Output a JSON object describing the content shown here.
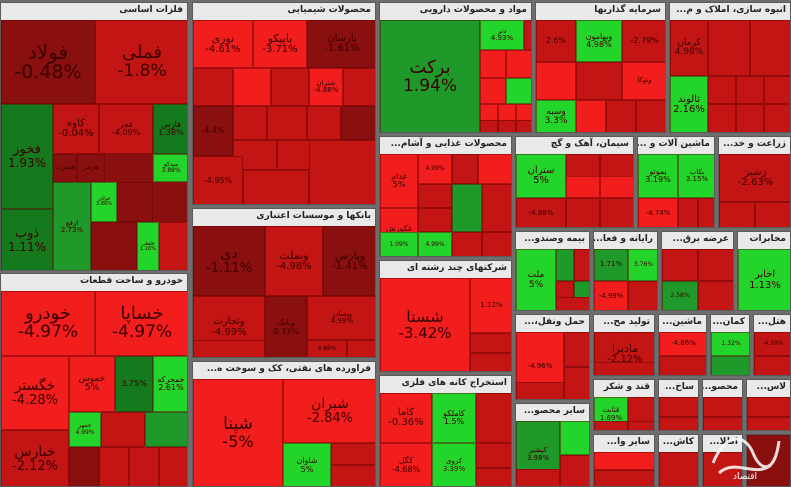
{
  "chart_data": {
    "type": "treemap",
    "title": "",
    "sectors": [
      {
        "id": "s1",
        "name": "فلزات اساسی",
        "tiles": [
          {
            "name": "فولاد",
            "value": "-0.48%"
          },
          {
            "name": "فملی",
            "value": "-1.8%"
          },
          {
            "name": "فخوز",
            "value": "1.93%"
          },
          {
            "name": "کاوه",
            "value": "-0.04%"
          },
          {
            "name": "فجر",
            "value": "-4.09%"
          },
          {
            "name": "فارس",
            "value": "1.38%"
          },
          {
            "name": "فسرب",
            "value": ""
          },
          {
            "name": "هرمز",
            "value": ""
          },
          {
            "name": "میدکو",
            "value": "3.88%"
          },
          {
            "name": "ذوب",
            "value": "1.11%"
          },
          {
            "name": "ارفع",
            "value": "2.73%"
          },
          {
            "name": "فولای",
            "value": "3.86%"
          },
          {
            "name": "",
            "value": ""
          },
          {
            "name": "فلطی",
            "value": "1.16%"
          },
          {
            "name": "",
            "value": ""
          },
          {
            "name": "",
            "value": ""
          }
        ]
      },
      {
        "id": "s2",
        "name": "محصولات شیمیایی",
        "tiles": [
          {
            "name": "نوری",
            "value": "-4.61%"
          },
          {
            "name": "پاپیکو",
            "value": "-3.71%"
          },
          {
            "name": "پارسان",
            "value": "-1.61%"
          },
          {
            "name": "",
            "value": ""
          },
          {
            "name": "",
            "value": ""
          },
          {
            "name": "",
            "value": ""
          },
          {
            "name": "شتران",
            "value": "-4.88%"
          },
          {
            "name": "",
            "value": ""
          },
          {
            "name": "",
            "value": ""
          },
          {
            "name": "",
            "value": ""
          },
          {
            "name": "",
            "value": ""
          },
          {
            "name": "",
            "value": ""
          },
          {
            "name": "",
            "value": "-4.4%"
          },
          {
            "name": "",
            "value": ""
          },
          {
            "name": "",
            "value": ""
          },
          {
            "name": "",
            "value": "-4.95%"
          },
          {
            "name": "",
            "value": ""
          },
          {
            "name": "",
            "value": ""
          }
        ]
      },
      {
        "id": "s3",
        "name": "مواد و محصولات دارویی",
        "tiles": [
          {
            "name": "برکت",
            "value": "1.94%"
          },
          {
            "name": "دتر",
            "value": "4.93%"
          },
          {
            "name": "",
            "value": ""
          },
          {
            "name": "",
            "value": ""
          },
          {
            "name": "",
            "value": ""
          },
          {
            "name": "",
            "value": ""
          },
          {
            "name": "",
            "value": ""
          },
          {
            "name": "",
            "value": ""
          },
          {
            "name": "",
            "value": ""
          },
          {
            "name": "",
            "value": ""
          },
          {
            "name": "",
            "value": ""
          },
          {
            "name": "",
            "value": ""
          },
          {
            "name": "",
            "value": ""
          }
        ]
      },
      {
        "id": "s4",
        "name": "سرمایه گذاریها",
        "tiles": [
          {
            "name": "",
            "value": "2.6%"
          },
          {
            "name": "وبهامون",
            "value": "4.98%"
          },
          {
            "name": "",
            "value": "-2.79%"
          },
          {
            "name": "",
            "value": ""
          },
          {
            "name": "",
            "value": ""
          },
          {
            "name": "وتوکا",
            "value": ""
          },
          {
            "name": "",
            "value": ""
          },
          {
            "name": "وسبه",
            "value": "3.3%"
          },
          {
            "name": "",
            "value": ""
          },
          {
            "name": "",
            "value": ""
          },
          {
            "name": "",
            "value": ""
          }
        ]
      },
      {
        "id": "s5",
        "name": "انبوه سازی، املاک و م...",
        "tiles": [
          {
            "name": "کرمان",
            "value": "4.98%"
          },
          {
            "name": "",
            "value": ""
          },
          {
            "name": "",
            "value": ""
          },
          {
            "name": "ثالوند",
            "value": "2.16%"
          },
          {
            "name": "",
            "value": ""
          },
          {
            "name": "",
            "value": ""
          },
          {
            "name": "",
            "value": ""
          },
          {
            "name": "",
            "value": ""
          },
          {
            "name": "",
            "value": ""
          },
          {
            "name": "",
            "value": ""
          }
        ]
      },
      {
        "id": "s6",
        "name": "خودرو و ساخت قطعات",
        "tiles": [
          {
            "name": "خودرو",
            "value": "-4.97%"
          },
          {
            "name": "خساپا",
            "value": "-4.97%"
          },
          {
            "name": "خگستر",
            "value": "-4.28%"
          },
          {
            "name": "خموس",
            "value": "5%"
          },
          {
            "name": "",
            "value": "3.75%"
          },
          {
            "name": "خمحرکه",
            "value": "2.61%"
          },
          {
            "name": "خمهر",
            "value": "4.99%"
          },
          {
            "name": "",
            "value": ""
          },
          {
            "name": "",
            "value": ""
          },
          {
            "name": "خبارس",
            "value": "-2.12%"
          },
          {
            "name": "",
            "value": ""
          },
          {
            "name": "",
            "value": ""
          },
          {
            "name": "",
            "value": ""
          },
          {
            "name": "",
            "value": ""
          },
          {
            "name": "",
            "value": ""
          }
        ]
      },
      {
        "id": "s7",
        "name": "محصولات غذایی و آشام...",
        "tiles": [
          {
            "name": "غدام",
            "value": "5%"
          },
          {
            "name": "",
            "value": "4.99%"
          },
          {
            "name": "",
            "value": ""
          },
          {
            "name": "",
            "value": ""
          },
          {
            "name": "",
            "value": ""
          },
          {
            "name": "غکورش",
            "value": "4.98%"
          },
          {
            "name": "",
            "value": ""
          },
          {
            "name": "",
            "value": ""
          },
          {
            "name": "",
            "value": "1.09%"
          },
          {
            "name": "",
            "value": "4.99%"
          },
          {
            "name": "",
            "value": ""
          },
          {
            "name": "",
            "value": ""
          },
          {
            "name": "",
            "value": ""
          }
        ]
      },
      {
        "id": "s8",
        "name": "سیمان، آهک و گچ",
        "tiles": [
          {
            "name": "ستران",
            "value": "5%"
          },
          {
            "name": "",
            "value": ""
          },
          {
            "name": "",
            "value": ""
          },
          {
            "name": "",
            "value": "-4.98%"
          },
          {
            "name": "",
            "value": ""
          },
          {
            "name": "",
            "value": ""
          },
          {
            "name": "",
            "value": ""
          },
          {
            "name": "",
            "value": ""
          }
        ]
      },
      {
        "id": "s9",
        "name": "ماشین آلات و ...",
        "tiles": [
          {
            "name": "بموتو",
            "value": "3.19%"
          },
          {
            "name": "بکاب",
            "value": "3.15%"
          },
          {
            "name": "",
            "value": "-4.74%"
          },
          {
            "name": "",
            "value": ""
          },
          {
            "name": "",
            "value": ""
          }
        ]
      },
      {
        "id": "s10",
        "name": "زراعت و خد...",
        "tiles": [
          {
            "name": "زشیر",
            "value": "-2.63%"
          },
          {
            "name": "",
            "value": ""
          },
          {
            "name": "",
            "value": ""
          }
        ]
      },
      {
        "id": "s11",
        "name": "بانکها و موسسات اعتباری",
        "tiles": [
          {
            "name": "دی",
            "value": "-1.11%"
          },
          {
            "name": "وبملت",
            "value": "-4.98%"
          },
          {
            "name": "وپارس",
            "value": "-1.41%"
          },
          {
            "name": "وبصادر",
            "value": "4.99%"
          },
          {
            "name": "وبانک",
            "value": "0.33%"
          },
          {
            "name": "وتجارت",
            "value": "-4.99%"
          },
          {
            "name": "",
            "value": "4.86%"
          },
          {
            "name": "",
            "value": ""
          },
          {
            "name": "",
            "value": ""
          }
        ]
      },
      {
        "id": "s12",
        "name": "شرکتهای چند رشته ای",
        "tiles": [
          {
            "name": "شستا",
            "value": "-3.42%"
          },
          {
            "name": "",
            "value": "1.12%"
          },
          {
            "name": "",
            "value": ""
          },
          {
            "name": "",
            "value": ""
          }
        ]
      },
      {
        "id": "s13",
        "name": "بیمه وصندو...",
        "tiles": [
          {
            "name": "ملت",
            "value": "5%"
          },
          {
            "name": "",
            "value": ""
          },
          {
            "name": "",
            "value": ""
          },
          {
            "name": "",
            "value": ""
          },
          {
            "name": "",
            "value": ""
          },
          {
            "name": "",
            "value": ""
          }
        ]
      },
      {
        "id": "s14",
        "name": "رایانه و فعا...",
        "tiles": [
          {
            "name": "",
            "value": "1.71%"
          },
          {
            "name": "",
            "value": "3.76%"
          },
          {
            "name": "",
            "value": "-4.99%"
          },
          {
            "name": "",
            "value": ""
          }
        ]
      },
      {
        "id": "s15",
        "name": "عرضه برق...",
        "tiles": [
          {
            "name": "",
            "value": ""
          },
          {
            "name": "",
            "value": ""
          },
          {
            "name": "",
            "value": "2.58%"
          },
          {
            "name": "",
            "value": ""
          }
        ]
      },
      {
        "id": "s16",
        "name": "مخابرات",
        "tiles": [
          {
            "name": "اخابر",
            "value": "1.13%"
          }
        ]
      },
      {
        "id": "s17",
        "name": "فراورده های نفتی، کک و سوخت ه...",
        "tiles": [
          {
            "name": "شپنا",
            "value": "-5%"
          },
          {
            "name": "شبران",
            "value": "-2.84%"
          },
          {
            "name": "شاوان",
            "value": "5%"
          },
          {
            "name": "",
            "value": ""
          },
          {
            "name": "",
            "value": ""
          },
          {
            "name": "",
            "value": ""
          }
        ]
      },
      {
        "id": "s18",
        "name": "استخراج کانه های فلزی",
        "tiles": [
          {
            "name": "کاما",
            "value": "-0.36%"
          },
          {
            "name": "کاملکو",
            "value": "1.5%"
          },
          {
            "name": "",
            "value": ""
          },
          {
            "name": "کروی",
            "value": "3.39%"
          },
          {
            "name": "کگل",
            "value": "-4.68%"
          },
          {
            "name": "",
            "value": ""
          },
          {
            "name": "",
            "value": ""
          }
        ]
      },
      {
        "id": "s19",
        "name": "حمل ونقل،...",
        "tiles": [
          {
            "name": "",
            "value": "-4.96%"
          },
          {
            "name": "",
            "value": ""
          },
          {
            "name": "",
            "value": ""
          },
          {
            "name": "",
            "value": ""
          }
        ]
      },
      {
        "id": "s20",
        "name": "سایر محصو...",
        "tiles": [
          {
            "name": "کپشیر",
            "value": "3.98%"
          },
          {
            "name": "",
            "value": ""
          },
          {
            "name": "",
            "value": ""
          },
          {
            "name": "",
            "value": ""
          }
        ]
      },
      {
        "id": "s21",
        "name": "تولید مح...",
        "tiles": [
          {
            "name": "مادیرا",
            "value": "-2.12%"
          },
          {
            "name": "",
            "value": ""
          }
        ]
      },
      {
        "id": "s22",
        "name": "ماشین...",
        "tiles": [
          {
            "name": "",
            "value": "-4.86%"
          },
          {
            "name": "",
            "value": ""
          }
        ]
      },
      {
        "id": "s23",
        "name": "کمان...",
        "tiles": [
          {
            "name": "",
            "value": "1.32%"
          },
          {
            "name": "",
            "value": ""
          }
        ]
      },
      {
        "id": "s24",
        "name": "هتل...",
        "tiles": [
          {
            "name": "",
            "value": "-4.59%"
          },
          {
            "name": "",
            "value": ""
          }
        ]
      },
      {
        "id": "s25",
        "name": "قند و شکر",
        "tiles": [
          {
            "name": "قثابت",
            "value": "1.69%"
          },
          {
            "name": "",
            "value": ""
          },
          {
            "name": "",
            "value": ""
          },
          {
            "name": "",
            "value": ""
          }
        ]
      },
      {
        "id": "s26",
        "name": "ساخ...",
        "tiles": [
          {
            "name": "",
            "value": ""
          },
          {
            "name": "",
            "value": ""
          }
        ]
      },
      {
        "id": "s27",
        "name": "محصو...",
        "tiles": [
          {
            "name": "",
            "value": ""
          },
          {
            "name": "",
            "value": ""
          }
        ]
      },
      {
        "id": "s28",
        "name": "لاس...",
        "tiles": [
          {
            "name": "",
            "value": ""
          },
          {
            "name": "",
            "value": ""
          }
        ]
      },
      {
        "id": "s29",
        "name": "سایر وا...",
        "tiles": [
          {
            "name": "",
            "value": ""
          },
          {
            "name": "",
            "value": ""
          }
        ]
      },
      {
        "id": "s30",
        "name": "کاش...",
        "tiles": [
          {
            "name": "",
            "value": ""
          }
        ]
      },
      {
        "id": "s31",
        "name": "اطلا...",
        "tiles": [
          {
            "name": "",
            "value": ""
          }
        ]
      },
      {
        "id": "s32",
        "name": "",
        "tiles": [
          {
            "name": "",
            "value": ""
          }
        ]
      }
    ]
  },
  "colors": {
    "deep_red": "#8a0f0f",
    "red": "#c41515",
    "bright_red": "#f21d1d",
    "green": "#1f9a2a",
    "bright_green": "#23d52a",
    "mid_green": "#157a1d",
    "header_bg": "#e9e9e9",
    "border": "#6e6e6e"
  },
  "watermark": {
    "text": "اقتصاد"
  }
}
